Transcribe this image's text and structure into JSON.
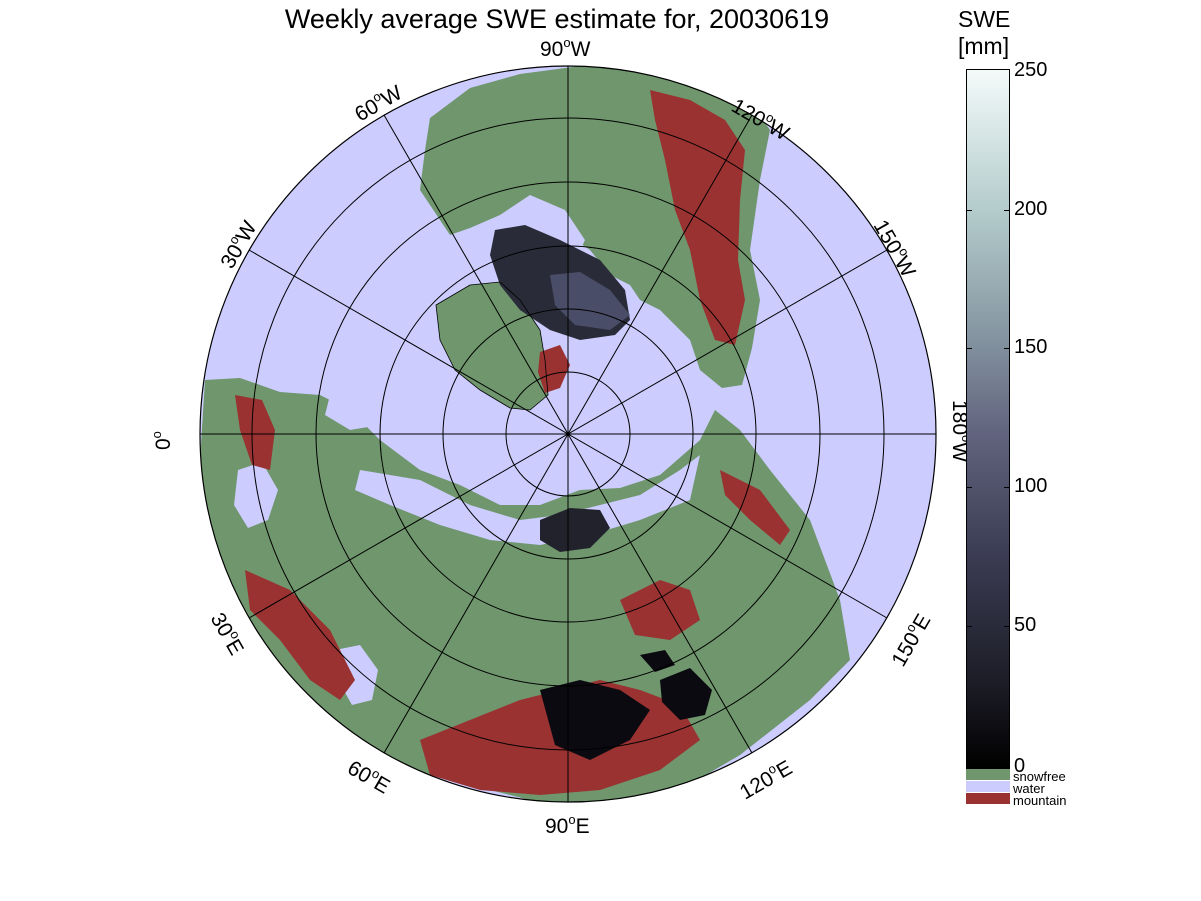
{
  "title": "Weekly average SWE estimate for, 20030619",
  "colorbar": {
    "title_line1": "SWE",
    "title_line2": "[mm]",
    "ticks": [
      "0",
      "50",
      "100",
      "150",
      "200",
      "250"
    ],
    "min": 0,
    "max": 250,
    "legend": [
      {
        "label": "snowfree",
        "color": "#6f966c"
      },
      {
        "label": "water",
        "color": "#ccccff"
      },
      {
        "label": "mountain",
        "color": "#9a3232"
      }
    ]
  },
  "map": {
    "projection": "north polar stereographic",
    "longitude_labels": [
      {
        "lon": "90",
        "hem": "W"
      },
      {
        "lon": "120",
        "hem": "W"
      },
      {
        "lon": "150",
        "hem": "W"
      },
      {
        "lon": "180",
        "hem": "W"
      },
      {
        "lon": "150",
        "hem": "E"
      },
      {
        "lon": "120",
        "hem": "E"
      },
      {
        "lon": "90",
        "hem": "E"
      },
      {
        "lon": "60",
        "hem": "E"
      },
      {
        "lon": "30",
        "hem": "E"
      },
      {
        "lon": "0",
        "hem": ""
      },
      {
        "lon": "30",
        "hem": "W"
      },
      {
        "lon": "60",
        "hem": "W"
      }
    ],
    "colors": {
      "water": "#ccccff",
      "snowfree": "#6f966c",
      "mountain": "#9a3232",
      "swe_low": "#0a0a10",
      "swe_mid": "#4a4d68"
    }
  }
}
